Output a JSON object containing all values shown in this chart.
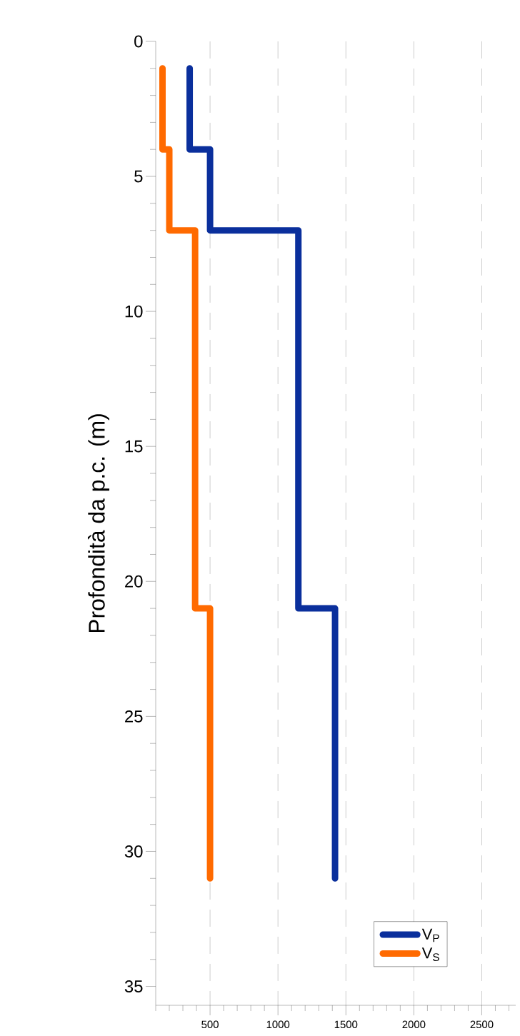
{
  "chart_data": {
    "type": "line",
    "ylabel": "Profondità da p.c. (m)",
    "series": [
      {
        "name": "V$_{P}$",
        "color": "#0a2f9c",
        "x": [
          350,
          350,
          500,
          500,
          1150,
          1150,
          1420,
          1420
        ],
        "values": [
          1,
          4,
          4,
          7,
          7,
          21,
          21,
          31
        ]
      },
      {
        "name": "V$_{S}$",
        "color": "#ff6a00",
        "x": [
          150,
          150,
          200,
          200,
          390,
          390,
          500,
          500
        ],
        "values": [
          1,
          4,
          4,
          7,
          7,
          21,
          21,
          31
        ]
      }
    ],
    "xlim": [
      100,
      2750
    ],
    "ylim": [
      35.7,
      0
    ],
    "xticks": [
      {
        "value": 100,
        "label": null
      },
      {
        "value": 200,
        "label": null
      },
      {
        "value": 300,
        "label": null
      },
      {
        "value": 400,
        "label": null
      },
      500,
      {
        "value": 600,
        "label": null
      },
      {
        "value": 700,
        "label": null
      },
      {
        "value": 800,
        "label": null
      },
      {
        "value": 900,
        "label": null
      },
      1000,
      {
        "value": 1100,
        "label": null
      },
      {
        "value": 1200,
        "label": null
      },
      {
        "value": 1300,
        "label": null
      },
      {
        "value": 1400,
        "label": null
      },
      1500,
      {
        "value": 1600,
        "label": null
      },
      {
        "value": 1700,
        "label": null
      },
      {
        "value": 1800,
        "label": null
      },
      {
        "value": 1900,
        "label": null
      },
      2000,
      {
        "value": 2100,
        "label": null
      },
      {
        "value": 2200,
        "label": null
      },
      {
        "value": 2300,
        "label": null
      },
      {
        "value": 2400,
        "label": null
      },
      2500,
      {
        "value": 2600,
        "label": null
      },
      {
        "value": 2700,
        "label": null
      }
    ],
    "yticks": [
      0,
      {
        "value": 1,
        "label": null
      },
      {
        "value": 2,
        "label": null
      },
      {
        "value": 3,
        "label": null
      },
      {
        "value": 4,
        "label": null
      },
      5,
      {
        "value": 6,
        "label": null
      },
      {
        "value": 7,
        "label": null
      },
      {
        "value": 8,
        "label": null
      },
      {
        "value": 9,
        "label": null
      },
      10,
      {
        "value": 11,
        "label": null
      },
      {
        "value": 12,
        "label": null
      },
      {
        "value": 13,
        "label": null
      },
      {
        "value": 14,
        "label": null
      },
      15,
      {
        "value": 16,
        "label": null
      },
      {
        "value": 17,
        "label": null
      },
      {
        "value": 18,
        "label": null
      },
      {
        "value": 19,
        "label": null
      },
      20,
      {
        "value": 21,
        "label": null
      },
      {
        "value": 22,
        "label": null
      },
      {
        "value": 23,
        "label": null
      },
      {
        "value": 24,
        "label": null
      },
      25,
      {
        "value": 26,
        "label": null
      },
      {
        "value": 27,
        "label": null
      },
      {
        "value": 28,
        "label": null
      },
      {
        "value": 29,
        "label": null
      },
      30,
      {
        "value": 31,
        "label": null
      },
      {
        "value": 32,
        "label": null
      },
      {
        "value": 33,
        "label": null
      },
      {
        "value": 34,
        "label": null
      },
      35
    ],
    "grid": "x",
    "legend": "bottom right",
    "line_style": "solid",
    "marker": "none"
  }
}
